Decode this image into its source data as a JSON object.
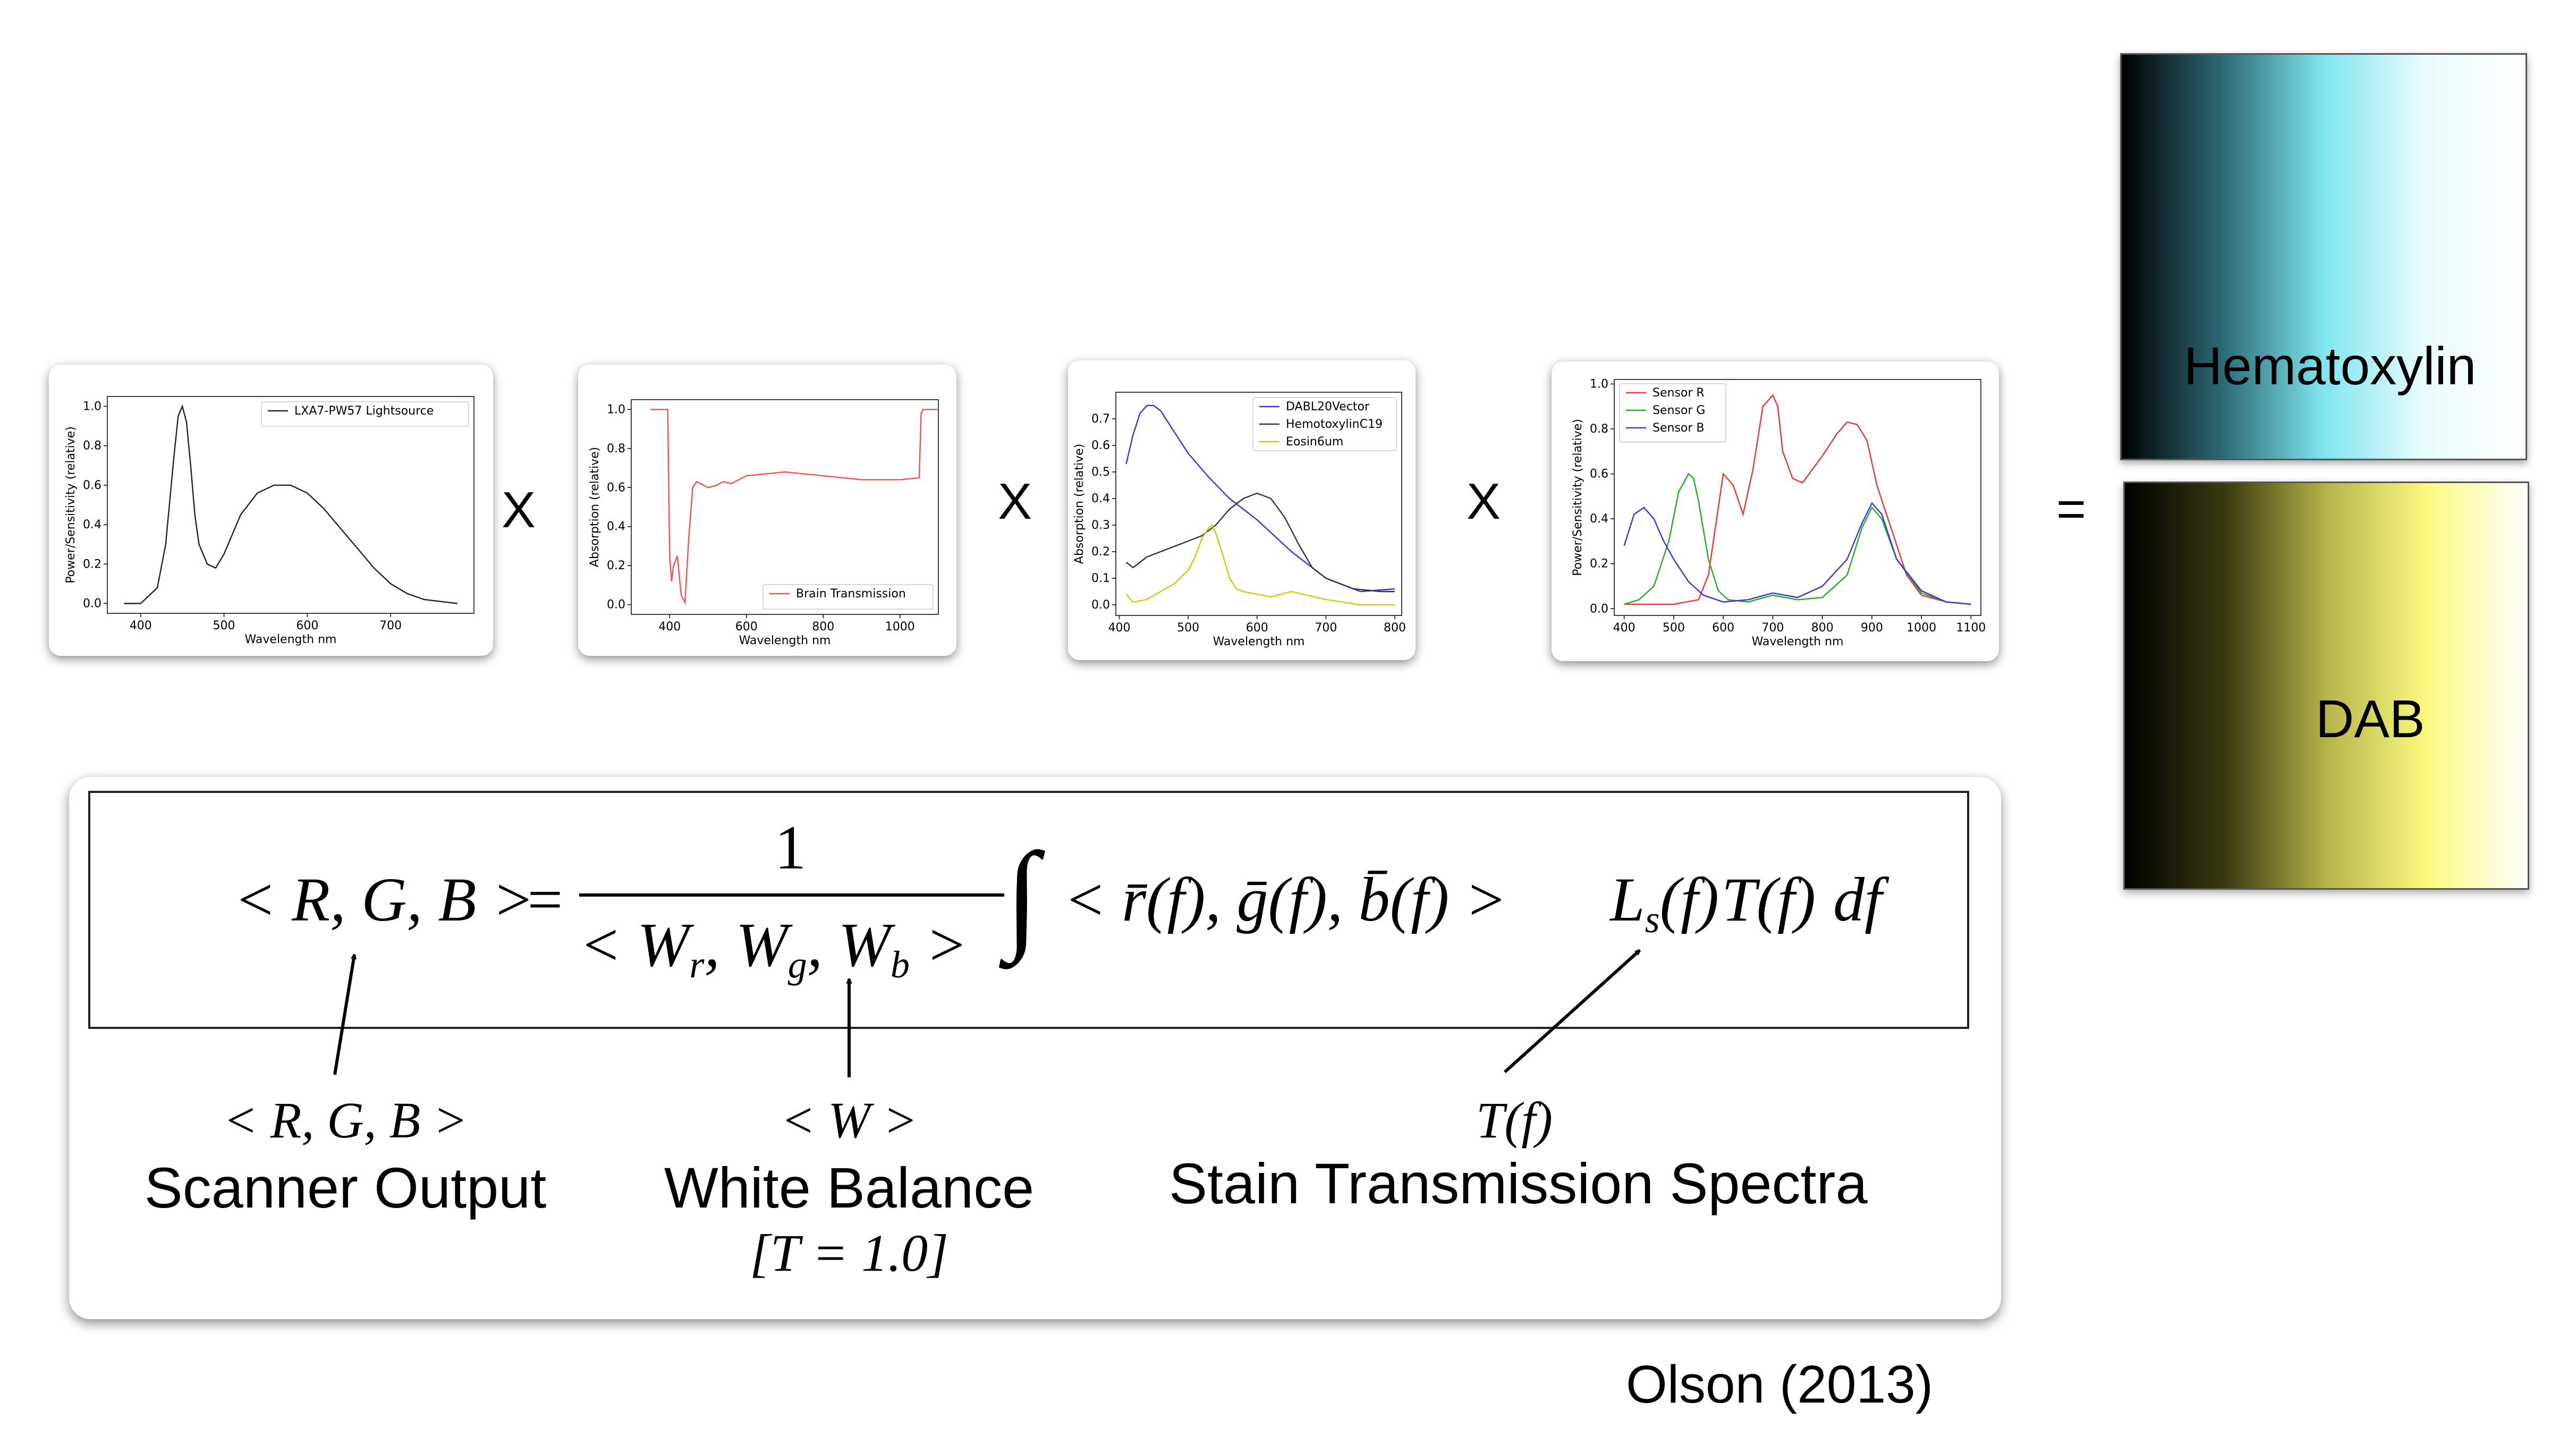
{
  "operators": {
    "times": "X",
    "equals": "="
  },
  "chart_data": [
    {
      "type": "line",
      "xlabel": "Wavelength nm",
      "ylabel": "Power/Sensitivity (relative)",
      "xlim": [
        360,
        800
      ],
      "ylim": [
        -0.05,
        1.05
      ],
      "xticks": [
        400,
        500,
        600,
        700
      ],
      "yticks": [
        0.0,
        0.2,
        0.4,
        0.6,
        0.8,
        1.0
      ],
      "legend_position": "top-right",
      "series": [
        {
          "name": "LXA7-PW57 Lightsource",
          "color": "#222222",
          "x": [
            380,
            400,
            420,
            430,
            440,
            445,
            450,
            455,
            460,
            465,
            470,
            480,
            490,
            500,
            520,
            540,
            560,
            580,
            600,
            620,
            640,
            660,
            680,
            700,
            720,
            740,
            760,
            780
          ],
          "y": [
            0.0,
            0.0,
            0.08,
            0.3,
            0.75,
            0.95,
            1.0,
            0.92,
            0.7,
            0.45,
            0.3,
            0.2,
            0.18,
            0.25,
            0.45,
            0.56,
            0.6,
            0.6,
            0.56,
            0.48,
            0.38,
            0.28,
            0.18,
            0.1,
            0.05,
            0.02,
            0.01,
            0.0
          ]
        }
      ]
    },
    {
      "type": "line",
      "xlabel": "Wavelength nm",
      "ylabel": "Absorption (relative)",
      "xlim": [
        300,
        1100
      ],
      "ylim": [
        -0.05,
        1.05
      ],
      "xticks": [
        400,
        600,
        800,
        1000
      ],
      "yticks": [
        0.0,
        0.2,
        0.4,
        0.6,
        0.8,
        1.0
      ],
      "legend_position": "bottom-right",
      "series": [
        {
          "name": "Brain Transmission",
          "color": "#ff4d4d",
          "x": [
            350,
            395,
            400,
            405,
            410,
            420,
            430,
            440,
            450,
            460,
            470,
            480,
            500,
            520,
            540,
            560,
            580,
            600,
            650,
            700,
            750,
            800,
            850,
            900,
            950,
            1000,
            1050,
            1055,
            1060,
            1100
          ],
          "y": [
            1.0,
            1.0,
            0.25,
            0.12,
            0.2,
            0.25,
            0.05,
            0.01,
            0.35,
            0.6,
            0.63,
            0.62,
            0.6,
            0.61,
            0.63,
            0.62,
            0.64,
            0.66,
            0.67,
            0.68,
            0.67,
            0.66,
            0.65,
            0.64,
            0.64,
            0.64,
            0.65,
            0.98,
            1.0,
            1.0
          ]
        }
      ]
    },
    {
      "type": "line",
      "xlabel": "Wavelength nm",
      "ylabel": "Absorption (relative)",
      "xlim": [
        395,
        810
      ],
      "ylim": [
        -0.04,
        0.8
      ],
      "xticks": [
        400,
        500,
        600,
        700,
        800
      ],
      "yticks": [
        0.0,
        0.1,
        0.2,
        0.3,
        0.4,
        0.5,
        0.6,
        0.7
      ],
      "legend_position": "top-right",
      "series": [
        {
          "name": "DABL20Vector",
          "color": "#3333ee",
          "x": [
            410,
            420,
            430,
            440,
            450,
            460,
            480,
            500,
            530,
            560,
            600,
            650,
            700,
            750,
            800
          ],
          "y": [
            0.53,
            0.64,
            0.72,
            0.75,
            0.75,
            0.73,
            0.65,
            0.57,
            0.48,
            0.4,
            0.32,
            0.2,
            0.1,
            0.05,
            0.06
          ]
        },
        {
          "name": "HemotoxylinC19",
          "color": "#333333",
          "x": [
            410,
            420,
            440,
            460,
            480,
            500,
            520,
            540,
            560,
            580,
            600,
            620,
            640,
            660,
            680,
            700,
            740,
            780,
            800
          ],
          "y": [
            0.16,
            0.14,
            0.18,
            0.2,
            0.22,
            0.24,
            0.26,
            0.3,
            0.36,
            0.4,
            0.42,
            0.4,
            0.33,
            0.23,
            0.14,
            0.1,
            0.06,
            0.05,
            0.05
          ]
        },
        {
          "name": "Eosin6um",
          "color": "#cccc00",
          "x": [
            410,
            420,
            440,
            460,
            480,
            500,
            510,
            520,
            530,
            535,
            540,
            550,
            560,
            570,
            580,
            600,
            620,
            650,
            700,
            750,
            800
          ],
          "y": [
            0.04,
            0.01,
            0.02,
            0.05,
            0.08,
            0.13,
            0.18,
            0.25,
            0.29,
            0.3,
            0.27,
            0.19,
            0.1,
            0.06,
            0.05,
            0.04,
            0.03,
            0.05,
            0.02,
            0.0,
            0.0
          ]
        }
      ]
    },
    {
      "type": "line",
      "xlabel": "Wavelength nm",
      "ylabel": "Power/Sensitivity (relative)",
      "xlim": [
        380,
        1120
      ],
      "ylim": [
        -0.03,
        1.02
      ],
      "xticks": [
        400,
        500,
        600,
        700,
        800,
        900,
        1000,
        1100
      ],
      "yticks": [
        0.0,
        0.2,
        0.4,
        0.6,
        0.8,
        1.0
      ],
      "legend_position": "top-left",
      "series": [
        {
          "name": "Sensor R",
          "color": "#ee3333",
          "x": [
            400,
            450,
            500,
            550,
            570,
            590,
            600,
            620,
            640,
            660,
            680,
            700,
            710,
            720,
            740,
            760,
            800,
            830,
            850,
            870,
            890,
            910,
            940,
            970,
            1000,
            1050,
            1100
          ],
          "y": [
            0.02,
            0.02,
            0.02,
            0.04,
            0.15,
            0.45,
            0.6,
            0.55,
            0.42,
            0.62,
            0.9,
            0.95,
            0.9,
            0.7,
            0.58,
            0.56,
            0.68,
            0.78,
            0.83,
            0.82,
            0.75,
            0.55,
            0.35,
            0.15,
            0.06,
            0.03,
            0.02
          ]
        },
        {
          "name": "Sensor G",
          "color": "#22aa22",
          "x": [
            400,
            430,
            460,
            490,
            510,
            530,
            540,
            550,
            570,
            590,
            610,
            650,
            700,
            750,
            800,
            850,
            880,
            900,
            920,
            950,
            1000,
            1050,
            1100
          ],
          "y": [
            0.02,
            0.04,
            0.1,
            0.3,
            0.52,
            0.6,
            0.58,
            0.48,
            0.22,
            0.08,
            0.04,
            0.03,
            0.06,
            0.04,
            0.05,
            0.15,
            0.36,
            0.45,
            0.4,
            0.22,
            0.07,
            0.03,
            0.02
          ]
        },
        {
          "name": "Sensor B",
          "color": "#3333ee",
          "x": [
            400,
            420,
            440,
            460,
            480,
            500,
            530,
            560,
            600,
            650,
            700,
            750,
            800,
            850,
            880,
            900,
            920,
            950,
            1000,
            1050,
            1100
          ],
          "y": [
            0.28,
            0.42,
            0.45,
            0.4,
            0.3,
            0.22,
            0.12,
            0.06,
            0.03,
            0.04,
            0.07,
            0.05,
            0.1,
            0.22,
            0.38,
            0.47,
            0.42,
            0.22,
            0.08,
            0.03,
            0.02
          ]
        }
      ]
    }
  ],
  "swatches": {
    "hematoxylin": {
      "label": "Hematoxylin",
      "gradient": [
        "#000000",
        "#2c6a74",
        "#7fe5ef",
        "#eafcfd",
        "#ffffff"
      ]
    },
    "dab": {
      "label": "DAB",
      "gradient": [
        "#000000",
        "#3a3a10",
        "#b5b54a",
        "#fafa80",
        "#ffffff"
      ]
    }
  },
  "formula": {
    "lhs": "< R, G, B >",
    "eq": "=",
    "numerator": "1",
    "integrand": "< r̄(f), ḡ(f), b̄(f) >",
    "tail": "df",
    "annotations": [
      {
        "math": "< R, G, B >",
        "label": "Scanner Output"
      },
      {
        "math": "< W >",
        "label": "White Balance",
        "note": "[T = 1.0]"
      },
      {
        "math": "T(f)",
        "label": "Stain Transmission Spectra"
      }
    ]
  },
  "citation": "Olson (2013)"
}
